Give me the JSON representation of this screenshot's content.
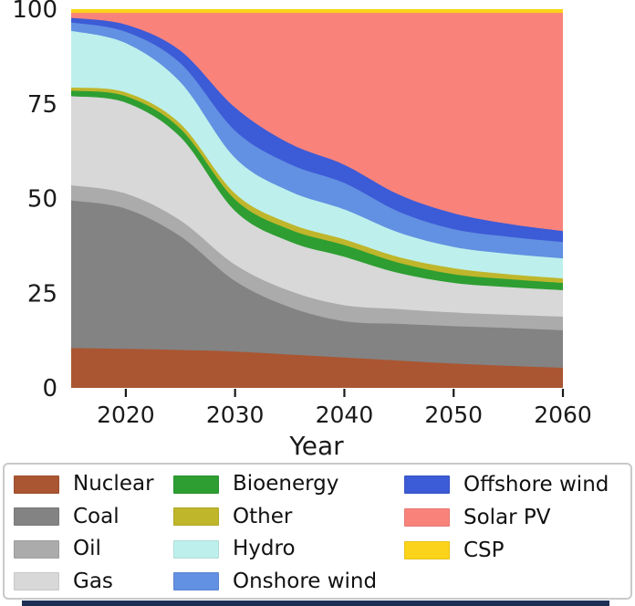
{
  "chart_data": {
    "type": "area",
    "stacked": true,
    "units": "percent share",
    "title": "",
    "xlabel": "Year",
    "ylabel": "",
    "xlim": [
      2015,
      2060
    ],
    "ylim": [
      0,
      100
    ],
    "xticks": [
      "2020",
      "2030",
      "2040",
      "2050",
      "2060"
    ],
    "xtick_values": [
      2020,
      2030,
      2040,
      2050,
      2060
    ],
    "yticks": [
      "0",
      "25",
      "50",
      "75",
      "100"
    ],
    "ytick_values": [
      0,
      25,
      50,
      75,
      100
    ],
    "grid": false,
    "legend_position": "bottom",
    "x": [
      2015,
      2020,
      2025,
      2030,
      2035,
      2040,
      2045,
      2050,
      2055,
      2060
    ],
    "series": [
      {
        "name": "Nuclear",
        "color": "#aa5632",
        "values": [
          10.5,
          10.3,
          10.0,
          9.6,
          8.8,
          8.0,
          7.2,
          6.4,
          5.8,
          5.3
        ]
      },
      {
        "name": "Coal",
        "color": "#838383",
        "values": [
          39.0,
          37.0,
          30.0,
          18.6,
          12.5,
          9.6,
          9.7,
          9.9,
          10.0,
          9.9
        ]
      },
      {
        "name": "Oil",
        "color": "#ababab",
        "values": [
          4.0,
          4.0,
          4.2,
          4.3,
          4.3,
          4.2,
          3.9,
          3.6,
          3.5,
          3.6
        ]
      },
      {
        "name": "Gas",
        "color": "#d8d8d8",
        "values": [
          23.5,
          24.0,
          22.0,
          14.2,
          13.0,
          12.8,
          9.5,
          7.8,
          7.3,
          7.0
        ]
      },
      {
        "name": "Bioenergy",
        "color": "#2e9e32",
        "values": [
          1.5,
          1.7,
          2.2,
          3.0,
          3.2,
          3.1,
          2.7,
          2.3,
          2.1,
          1.9
        ]
      },
      {
        "name": "Other",
        "color": "#bfb62b",
        "values": [
          0.8,
          1.0,
          1.3,
          1.6,
          1.6,
          1.5,
          1.5,
          1.6,
          1.3,
          1.2
        ]
      },
      {
        "name": "Hydro",
        "color": "#bdf0ec",
        "values": [
          15.0,
          13.0,
          11.0,
          9.4,
          8.5,
          7.9,
          6.5,
          5.6,
          5.4,
          5.3
        ]
      },
      {
        "name": "Onshore wind",
        "color": "#6290e2",
        "values": [
          2.2,
          3.0,
          5.0,
          7.2,
          7.2,
          7.0,
          5.5,
          4.7,
          4.5,
          4.3
        ]
      },
      {
        "name": "Offshore wind",
        "color": "#3c5bd6",
        "values": [
          1.2,
          1.9,
          3.3,
          6.1,
          5.4,
          4.8,
          4.5,
          4.2,
          3.4,
          2.9
        ]
      },
      {
        "name": "Solar PV",
        "color": "#f9837b",
        "values": [
          1.3,
          3.1,
          10.0,
          25.0,
          34.5,
          40.1,
          48.0,
          52.9,
          55.7,
          57.6
        ]
      },
      {
        "name": "CSP",
        "color": "#fbd31a",
        "values": [
          1.0,
          1.0,
          1.0,
          1.0,
          1.0,
          1.0,
          1.0,
          1.0,
          1.0,
          1.0
        ]
      }
    ]
  },
  "legend": {
    "columns": [
      [
        "Nuclear",
        "Coal",
        "Oil",
        "Gas"
      ],
      [
        "Bioenergy",
        "Other",
        "Hydro",
        "Onshore wind"
      ],
      [
        "Offshore wind",
        "Solar PV",
        "CSP"
      ]
    ]
  },
  "decor": {
    "bottom_strip_color": "#1d2f55",
    "legend_border_color": "#c9c9c9"
  }
}
